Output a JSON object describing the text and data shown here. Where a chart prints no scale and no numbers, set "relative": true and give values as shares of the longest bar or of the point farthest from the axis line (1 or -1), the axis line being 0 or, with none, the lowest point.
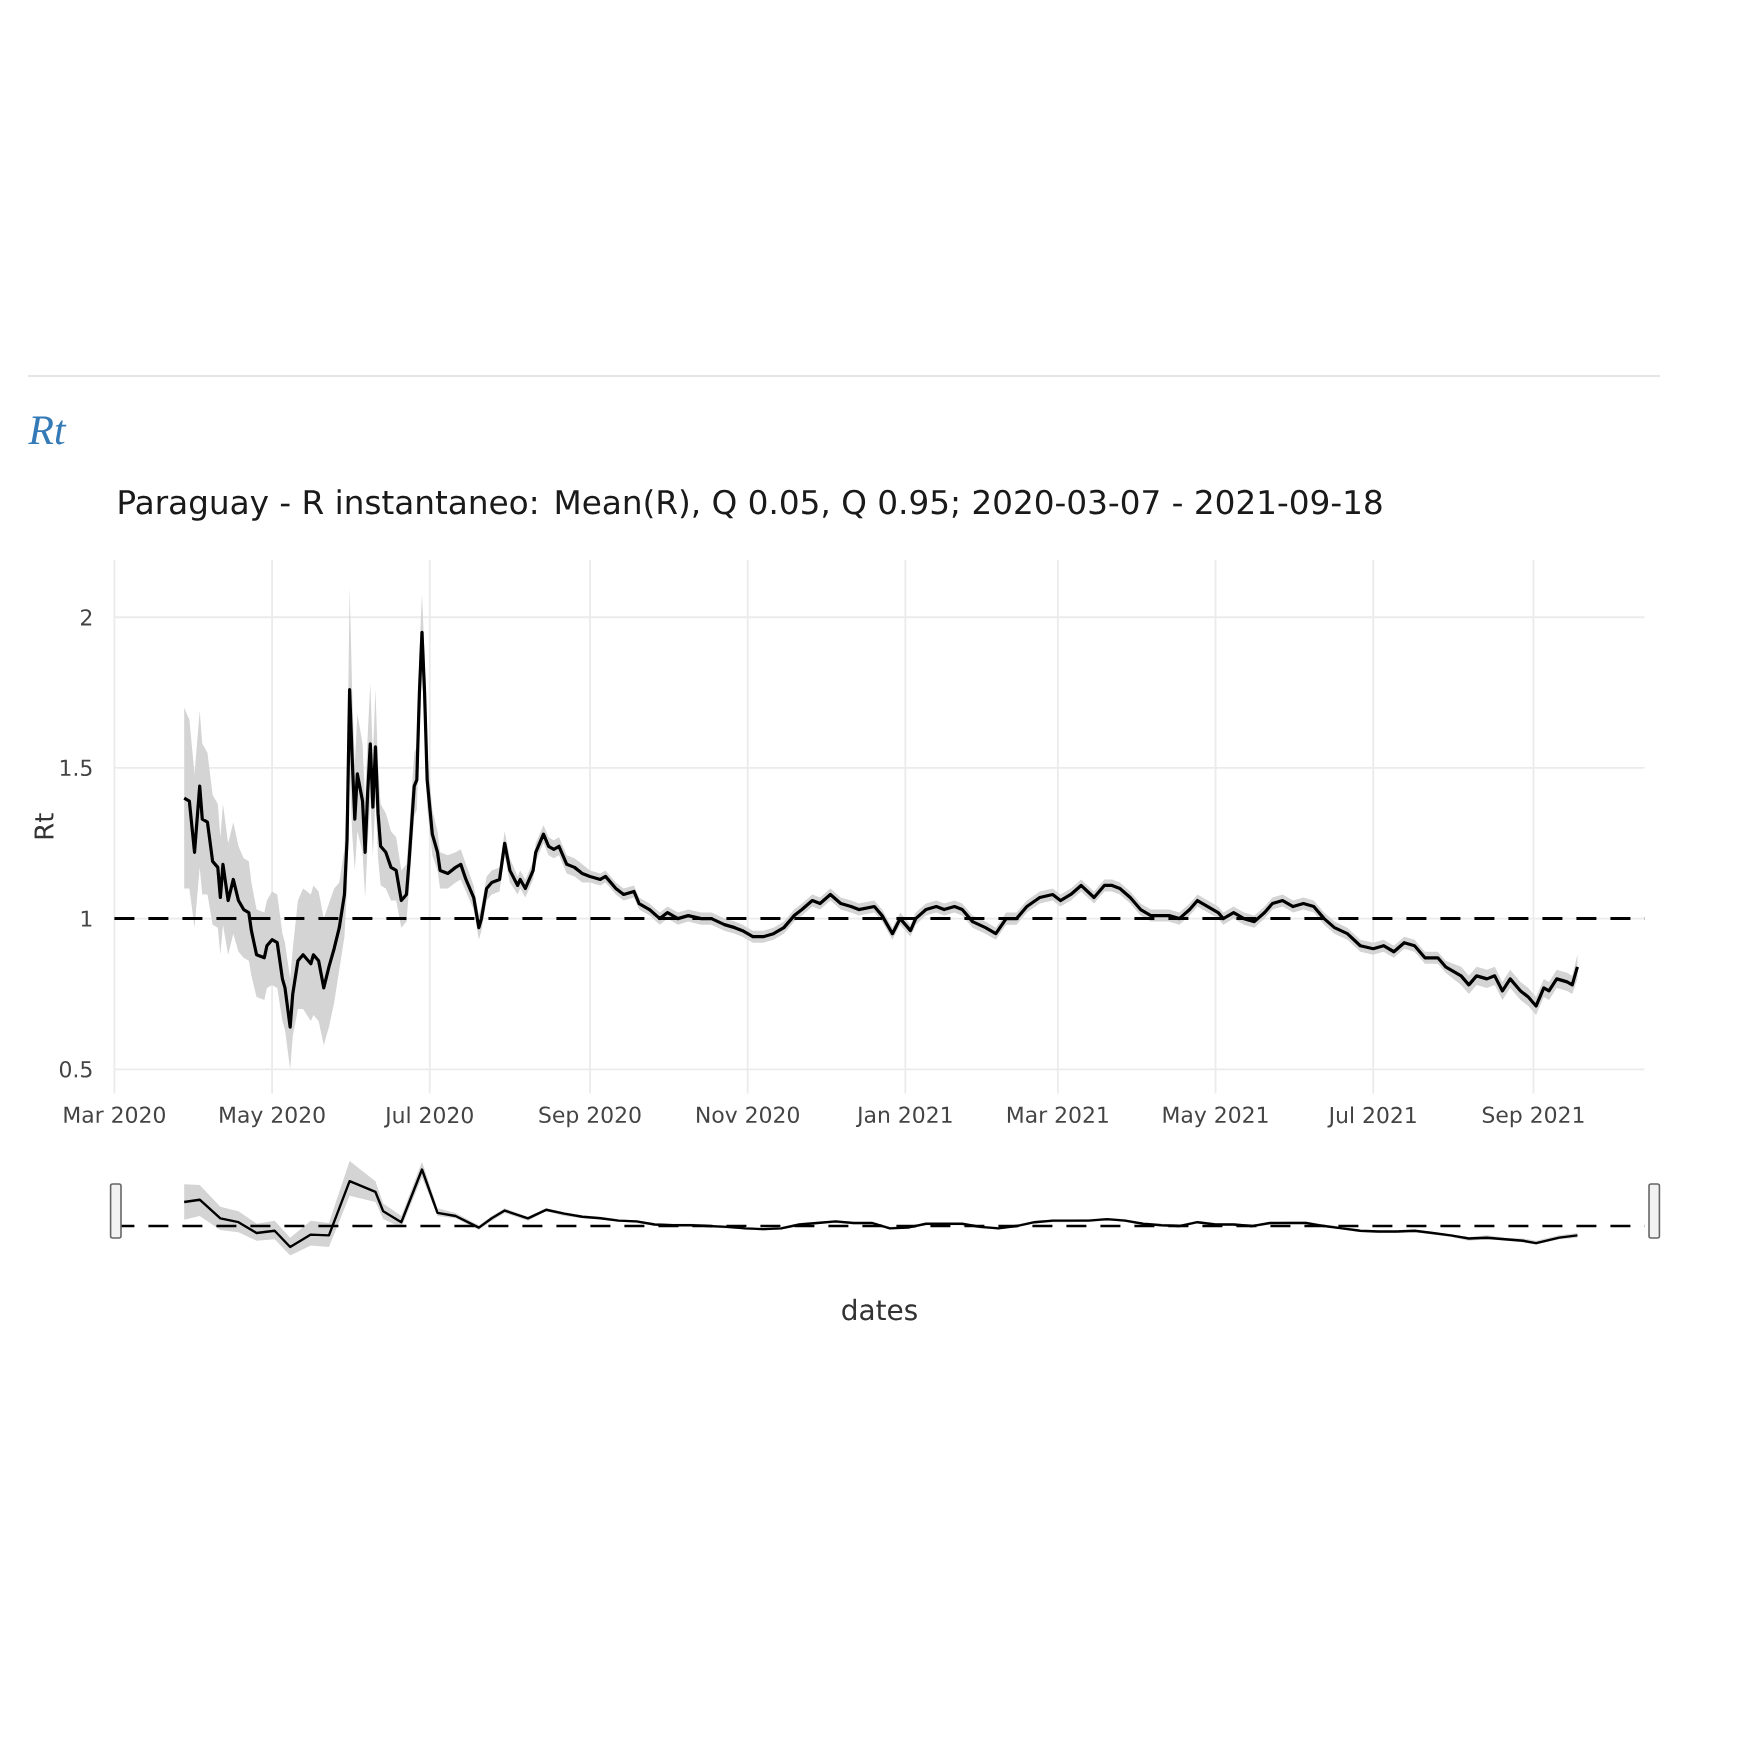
{
  "chart_data": [
    {
      "type": "line",
      "title": "Rt",
      "subtitle": "Paraguay - R instantaneo: Mean(R), Q 0.05, Q 0.95;  2020-03-07 - 2021-09-18",
      "ylabel": "Rt",
      "x": [
        "2020-03-28",
        "2020-03-30",
        "2020-04-01",
        "2020-04-03",
        "2020-04-04",
        "2020-04-06",
        "2020-04-08",
        "2020-04-10",
        "2020-04-11",
        "2020-04-12",
        "2020-04-14",
        "2020-04-16",
        "2020-04-18",
        "2020-04-20",
        "2020-04-22",
        "2020-04-23",
        "2020-04-25",
        "2020-04-28",
        "2020-04-29",
        "2020-05-01",
        "2020-05-03",
        "2020-05-05",
        "2020-05-06",
        "2020-05-08",
        "2020-05-09",
        "2020-05-11",
        "2020-05-13",
        "2020-05-16",
        "2020-05-17",
        "2020-05-19",
        "2020-05-21",
        "2020-05-23",
        "2020-05-25",
        "2020-05-27",
        "2020-05-29",
        "2020-05-30",
        "2020-05-31",
        "2020-06-01",
        "2020-06-02",
        "2020-06-03",
        "2020-06-05",
        "2020-06-06",
        "2020-06-07",
        "2020-06-08",
        "2020-06-09",
        "2020-06-10",
        "2020-06-11",
        "2020-06-12",
        "2020-06-14",
        "2020-06-16",
        "2020-06-18",
        "2020-06-20",
        "2020-06-22",
        "2020-06-23",
        "2020-06-25",
        "2020-06-26",
        "2020-06-27",
        "2020-06-28",
        "2020-06-29",
        "2020-06-30",
        "2020-07-02",
        "2020-07-04",
        "2020-07-05",
        "2020-07-08",
        "2020-07-11",
        "2020-07-13",
        "2020-07-15",
        "2020-07-18",
        "2020-07-20",
        "2020-07-21",
        "2020-07-23",
        "2020-07-25",
        "2020-07-28",
        "2020-07-30",
        "2020-08-01",
        "2020-08-04",
        "2020-08-05",
        "2020-08-07",
        "2020-08-10",
        "2020-08-11",
        "2020-08-14",
        "2020-08-16",
        "2020-08-18",
        "2020-08-20",
        "2020-08-23",
        "2020-08-26",
        "2020-08-29",
        "2020-09-01",
        "2020-09-05",
        "2020-09-07",
        "2020-09-11",
        "2020-09-14",
        "2020-09-18",
        "2020-09-20",
        "2020-09-24",
        "2020-09-28",
        "2020-10-01",
        "2020-10-05",
        "2020-10-09",
        "2020-10-14",
        "2020-10-18",
        "2020-10-23",
        "2020-10-27",
        "2020-10-30",
        "2020-11-03",
        "2020-11-07",
        "2020-11-11",
        "2020-11-15",
        "2020-11-19",
        "2020-11-22",
        "2020-11-26",
        "2020-11-29",
        "2020-12-03",
        "2020-12-07",
        "2020-12-11",
        "2020-12-14",
        "2020-12-20",
        "2020-12-23",
        "2020-12-27",
        "2020-12-30",
        "2021-01-03",
        "2021-01-05",
        "2021-01-09",
        "2021-01-13",
        "2021-01-16",
        "2021-01-20",
        "2021-01-23",
        "2021-01-27",
        "2021-02-01",
        "2021-02-05",
        "2021-02-09",
        "2021-02-13",
        "2021-02-17",
        "2021-02-22",
        "2021-02-27",
        "2021-03-02",
        "2021-03-06",
        "2021-03-10",
        "2021-03-15",
        "2021-03-19",
        "2021-03-22",
        "2021-03-25",
        "2021-03-29",
        "2021-04-02",
        "2021-04-06",
        "2021-04-10",
        "2021-04-13",
        "2021-04-17",
        "2021-04-21",
        "2021-04-24",
        "2021-04-28",
        "2021-05-02",
        "2021-05-04",
        "2021-05-08",
        "2021-05-12",
        "2021-05-16",
        "2021-05-20",
        "2021-05-23",
        "2021-05-27",
        "2021-05-31",
        "2021-06-04",
        "2021-06-08",
        "2021-06-12",
        "2021-06-16",
        "2021-06-21",
        "2021-06-26",
        "2021-07-01",
        "2021-07-05",
        "2021-07-09",
        "2021-07-13",
        "2021-07-17",
        "2021-07-21",
        "2021-07-26",
        "2021-07-29",
        "2021-08-04",
        "2021-08-07",
        "2021-08-10",
        "2021-08-14",
        "2021-08-17",
        "2021-08-20",
        "2021-08-23",
        "2021-08-27",
        "2021-08-30",
        "2021-09-02",
        "2021-09-05",
        "2021-09-07",
        "2021-09-10",
        "2021-09-14",
        "2021-09-16",
        "2021-09-18"
      ],
      "series": [
        {
          "color": "#000000",
          "values": [
            1.4,
            1.39,
            1.22,
            1.44,
            1.33,
            1.32,
            1.19,
            1.17,
            1.07,
            1.18,
            1.06,
            1.13,
            1.06,
            1.03,
            1.02,
            0.96,
            0.88,
            0.87,
            0.91,
            0.93,
            0.92,
            0.8,
            0.77,
            0.64,
            0.75,
            0.86,
            0.88,
            0.85,
            0.88,
            0.86,
            0.77,
            0.84,
            0.9,
            0.97,
            1.08,
            1.26,
            1.76,
            1.53,
            1.33,
            1.48,
            1.39,
            1.22,
            1.42,
            1.58,
            1.37,
            1.57,
            1.35,
            1.24,
            1.22,
            1.17,
            1.16,
            1.06,
            1.08,
            1.19,
            1.44,
            1.46,
            1.75,
            1.95,
            1.75,
            1.46,
            1.28,
            1.22,
            1.16,
            1.15,
            1.17,
            1.18,
            1.13,
            1.07,
            0.97,
            1.0,
            1.1,
            1.12,
            1.13,
            1.25,
            1.16,
            1.11,
            1.13,
            1.1,
            1.16,
            1.22,
            1.28,
            1.24,
            1.23,
            1.24,
            1.18,
            1.17,
            1.15,
            1.14,
            1.13,
            1.14,
            1.1,
            1.08,
            1.09,
            1.05,
            1.03,
            1.0,
            1.02,
            1.0,
            1.01,
            1.0,
            1.0,
            0.98,
            0.97,
            0.96,
            0.94,
            0.94,
            0.95,
            0.97,
            1.01,
            1.03,
            1.06,
            1.05,
            1.08,
            1.05,
            1.04,
            1.03,
            1.04,
            1.01,
            0.95,
            1.0,
            0.96,
            1.0,
            1.03,
            1.04,
            1.03,
            1.04,
            1.03,
            0.99,
            0.97,
            0.95,
            1.0,
            1.0,
            1.04,
            1.07,
            1.08,
            1.06,
            1.08,
            1.11,
            1.07,
            1.11,
            1.11,
            1.1,
            1.07,
            1.03,
            1.01,
            1.01,
            1.01,
            1.0,
            1.03,
            1.06,
            1.04,
            1.02,
            1.0,
            1.02,
            1.0,
            0.99,
            1.02,
            1.05,
            1.06,
            1.04,
            1.05,
            1.04,
            1.0,
            0.97,
            0.95,
            0.91,
            0.9,
            0.91,
            0.89,
            0.92,
            0.91,
            0.87,
            0.87,
            0.84,
            0.81,
            0.78,
            0.81,
            0.8,
            0.81,
            0.76,
            0.8,
            0.76,
            0.74,
            0.71,
            0.77,
            0.76,
            0.8,
            0.79,
            0.78,
            0.84
          ],
          "lower": [
            1.1,
            1.1,
            0.97,
            1.17,
            1.08,
            1.08,
            0.98,
            0.97,
            0.88,
            0.98,
            0.88,
            0.95,
            0.89,
            0.87,
            0.86,
            0.81,
            0.74,
            0.73,
            0.77,
            0.78,
            0.77,
            0.66,
            0.63,
            0.5,
            0.61,
            0.7,
            0.7,
            0.66,
            0.68,
            0.66,
            0.58,
            0.64,
            0.72,
            0.83,
            0.94,
            1.1,
            1.5,
            1.28,
            1.16,
            1.29,
            1.22,
            1.07,
            1.25,
            1.4,
            1.21,
            1.4,
            1.2,
            1.11,
            1.1,
            1.06,
            1.06,
            0.97,
            0.99,
            1.1,
            1.34,
            1.36,
            1.63,
            1.82,
            1.64,
            1.37,
            1.21,
            1.16,
            1.1,
            1.1,
            1.12,
            1.13,
            1.09,
            1.03,
            0.93,
            0.96,
            1.06,
            1.08,
            1.09,
            1.21,
            1.12,
            1.08,
            1.1,
            1.07,
            1.13,
            1.19,
            1.25,
            1.21,
            1.2,
            1.21,
            1.15,
            1.14,
            1.12,
            1.12,
            1.11,
            1.12,
            1.08,
            1.06,
            1.07,
            1.03,
            1.01,
            0.98,
            1.0,
            0.98,
            0.99,
            0.98,
            0.98,
            0.96,
            0.95,
            0.94,
            0.92,
            0.92,
            0.93,
            0.95,
            0.99,
            1.01,
            1.04,
            1.03,
            1.06,
            1.03,
            1.02,
            1.01,
            1.02,
            0.99,
            0.93,
            0.98,
            0.94,
            0.98,
            1.01,
            1.02,
            1.01,
            1.02,
            1.01,
            0.97,
            0.95,
            0.93,
            0.98,
            0.98,
            1.02,
            1.05,
            1.06,
            1.04,
            1.06,
            1.09,
            1.05,
            1.09,
            1.09,
            1.08,
            1.05,
            1.01,
            0.99,
            0.99,
            0.99,
            0.98,
            1.01,
            1.04,
            1.02,
            1.0,
            0.98,
            1.0,
            0.98,
            0.97,
            1.0,
            1.03,
            1.04,
            1.02,
            1.03,
            1.02,
            0.98,
            0.95,
            0.93,
            0.89,
            0.88,
            0.89,
            0.87,
            0.9,
            0.89,
            0.85,
            0.85,
            0.82,
            0.78,
            0.75,
            0.78,
            0.77,
            0.78,
            0.73,
            0.77,
            0.73,
            0.71,
            0.68,
            0.74,
            0.73,
            0.77,
            0.76,
            0.75,
            0.8
          ],
          "upper": [
            1.7,
            1.66,
            1.48,
            1.69,
            1.58,
            1.55,
            1.41,
            1.38,
            1.27,
            1.38,
            1.25,
            1.32,
            1.24,
            1.2,
            1.19,
            1.12,
            1.03,
            1.02,
            1.06,
            1.09,
            1.08,
            0.95,
            0.92,
            0.8,
            0.9,
            1.06,
            1.1,
            1.08,
            1.11,
            1.09,
            1.0,
            1.05,
            1.1,
            1.12,
            1.23,
            1.43,
            2.1,
            1.75,
            1.51,
            1.68,
            1.58,
            1.39,
            1.61,
            1.78,
            1.54,
            1.76,
            1.51,
            1.38,
            1.35,
            1.29,
            1.27,
            1.16,
            1.18,
            1.29,
            1.55,
            1.57,
            1.88,
            2.08,
            1.87,
            1.56,
            1.36,
            1.29,
            1.22,
            1.21,
            1.22,
            1.23,
            1.18,
            1.11,
            1.01,
            1.04,
            1.14,
            1.16,
            1.17,
            1.29,
            1.2,
            1.14,
            1.16,
            1.13,
            1.19,
            1.25,
            1.31,
            1.27,
            1.26,
            1.27,
            1.21,
            1.2,
            1.18,
            1.16,
            1.15,
            1.16,
            1.12,
            1.1,
            1.11,
            1.07,
            1.05,
            1.02,
            1.04,
            1.02,
            1.03,
            1.02,
            1.02,
            1.0,
            0.99,
            0.98,
            0.96,
            0.96,
            0.97,
            0.99,
            1.03,
            1.05,
            1.08,
            1.07,
            1.1,
            1.07,
            1.06,
            1.05,
            1.06,
            1.03,
            0.97,
            1.02,
            0.98,
            1.02,
            1.05,
            1.06,
            1.05,
            1.06,
            1.05,
            1.01,
            0.99,
            0.97,
            1.02,
            1.02,
            1.06,
            1.09,
            1.1,
            1.08,
            1.1,
            1.13,
            1.09,
            1.13,
            1.13,
            1.12,
            1.09,
            1.05,
            1.03,
            1.03,
            1.03,
            1.02,
            1.05,
            1.08,
            1.06,
            1.04,
            1.02,
            1.04,
            1.02,
            1.01,
            1.04,
            1.07,
            1.08,
            1.06,
            1.07,
            1.06,
            1.02,
            0.99,
            0.97,
            0.93,
            0.92,
            0.93,
            0.91,
            0.94,
            0.93,
            0.89,
            0.89,
            0.86,
            0.84,
            0.81,
            0.84,
            0.83,
            0.84,
            0.79,
            0.83,
            0.79,
            0.77,
            0.74,
            0.8,
            0.79,
            0.83,
            0.82,
            0.81,
            0.88
          ]
        }
      ],
      "xlim": [
        "2020-03-01",
        "2021-10-14"
      ],
      "xticks": [
        {
          "value": "2020-03-01",
          "label": "Mar 2020"
        },
        {
          "value": "2020-05-01",
          "label": "May 2020"
        },
        {
          "value": "2020-07-01",
          "label": "Jul 2020"
        },
        {
          "value": "2020-09-01",
          "label": "Sep 2020"
        },
        {
          "value": "2020-11-01",
          "label": "Nov 2020"
        },
        {
          "value": "2021-01-01",
          "label": "Jan 2021"
        },
        {
          "value": "2021-03-01",
          "label": "Mar 2021"
        },
        {
          "value": "2021-05-01",
          "label": "May 2021"
        },
        {
          "value": "2021-07-01",
          "label": "Jul 2021"
        },
        {
          "value": "2021-09-01",
          "label": "Sep 2021"
        }
      ],
      "ylim": [
        0.42,
        2.19
      ],
      "yticks": [
        0.5,
        1,
        1.5,
        2
      ],
      "grid": true,
      "ref_lines": [
        {
          "axis": "y",
          "value": 1,
          "color": "#000000",
          "line_style": "dashed"
        }
      ]
    },
    {
      "type": "line",
      "relative": true,
      "xlabel": "dates",
      "x": [
        "2020-03-28",
        "2020-04-03",
        "2020-04-11",
        "2020-04-18",
        "2020-04-25",
        "2020-05-02",
        "2020-05-08",
        "2020-05-16",
        "2020-05-23",
        "2020-05-31",
        "2020-06-10",
        "2020-06-13",
        "2020-06-20",
        "2020-06-28",
        "2020-07-04",
        "2020-07-11",
        "2020-07-20",
        "2020-07-25",
        "2020-07-30",
        "2020-08-08",
        "2020-08-15",
        "2020-08-22",
        "2020-08-29",
        "2020-09-05",
        "2020-09-12",
        "2020-09-19",
        "2020-09-26",
        "2020-10-03",
        "2020-10-10",
        "2020-10-17",
        "2020-10-24",
        "2020-10-31",
        "2020-11-07",
        "2020-11-14",
        "2020-11-21",
        "2020-11-28",
        "2020-12-05",
        "2020-12-12",
        "2020-12-19",
        "2020-12-26",
        "2021-01-02",
        "2021-01-09",
        "2021-01-16",
        "2021-01-23",
        "2021-01-30",
        "2021-02-06",
        "2021-02-13",
        "2021-02-20",
        "2021-02-27",
        "2021-03-06",
        "2021-03-13",
        "2021-03-20",
        "2021-03-27",
        "2021-04-03",
        "2021-04-10",
        "2021-04-17",
        "2021-04-24",
        "2021-05-01",
        "2021-05-08",
        "2021-05-15",
        "2021-05-22",
        "2021-05-29",
        "2021-06-05",
        "2021-06-12",
        "2021-06-19",
        "2021-06-26",
        "2021-07-03",
        "2021-07-10",
        "2021-07-17",
        "2021-07-24",
        "2021-07-31",
        "2021-08-07",
        "2021-08-14",
        "2021-08-21",
        "2021-08-28",
        "2021-09-02",
        "2021-09-11",
        "2021-09-18"
      ],
      "xlim": [
        "2020-03-01",
        "2021-10-14"
      ],
      "series": [
        {
          "color": "#000000",
          "values": [
            0.58,
            0.61,
            0.37,
            0.32,
            0.18,
            0.21,
            0.0,
            0.16,
            0.15,
            0.85,
            0.71,
            0.46,
            0.32,
            1.0,
            0.44,
            0.4,
            0.25,
            0.37,
            0.47,
            0.37,
            0.48,
            0.43,
            0.39,
            0.37,
            0.34,
            0.33,
            0.29,
            0.28,
            0.28,
            0.27,
            0.26,
            0.24,
            0.23,
            0.24,
            0.29,
            0.31,
            0.33,
            0.31,
            0.31,
            0.24,
            0.25,
            0.3,
            0.3,
            0.3,
            0.26,
            0.24,
            0.27,
            0.32,
            0.34,
            0.34,
            0.34,
            0.36,
            0.34,
            0.3,
            0.28,
            0.27,
            0.32,
            0.29,
            0.29,
            0.27,
            0.31,
            0.31,
            0.31,
            0.27,
            0.24,
            0.21,
            0.2,
            0.2,
            0.21,
            0.18,
            0.15,
            0.11,
            0.12,
            0.1,
            0.08,
            0.05,
            0.12,
            0.15
          ],
          "lower": [
            0.35,
            0.4,
            0.22,
            0.19,
            0.08,
            0.1,
            -0.11,
            0.02,
            0.0,
            0.66,
            0.58,
            0.36,
            0.25,
            0.9,
            0.4,
            0.37,
            0.22,
            0.34,
            0.44,
            0.34,
            0.46,
            0.4,
            0.37,
            0.36,
            0.33,
            0.31,
            0.27,
            0.27,
            0.27,
            0.26,
            0.24,
            0.23,
            0.21,
            0.23,
            0.27,
            0.3,
            0.31,
            0.29,
            0.29,
            0.23,
            0.24,
            0.28,
            0.28,
            0.28,
            0.24,
            0.23,
            0.26,
            0.31,
            0.32,
            0.32,
            0.33,
            0.34,
            0.33,
            0.28,
            0.27,
            0.26,
            0.31,
            0.27,
            0.27,
            0.25,
            0.29,
            0.3,
            0.3,
            0.26,
            0.23,
            0.19,
            0.18,
            0.18,
            0.19,
            0.16,
            0.13,
            0.08,
            0.1,
            0.08,
            0.06,
            0.03,
            0.1,
            0.12
          ],
          "upper": [
            0.81,
            0.8,
            0.52,
            0.46,
            0.3,
            0.34,
            0.12,
            0.34,
            0.31,
            1.11,
            0.85,
            0.56,
            0.4,
            1.1,
            0.5,
            0.44,
            0.28,
            0.4,
            0.5,
            0.39,
            0.5,
            0.45,
            0.41,
            0.39,
            0.36,
            0.34,
            0.31,
            0.3,
            0.3,
            0.29,
            0.27,
            0.26,
            0.24,
            0.26,
            0.31,
            0.33,
            0.34,
            0.32,
            0.32,
            0.26,
            0.27,
            0.31,
            0.31,
            0.31,
            0.27,
            0.26,
            0.29,
            0.34,
            0.35,
            0.35,
            0.36,
            0.37,
            0.36,
            0.31,
            0.3,
            0.29,
            0.34,
            0.31,
            0.31,
            0.28,
            0.32,
            0.33,
            0.33,
            0.29,
            0.26,
            0.22,
            0.21,
            0.21,
            0.22,
            0.19,
            0.16,
            0.13,
            0.15,
            0.12,
            0.11,
            0.08,
            0.15,
            0.18
          ]
        }
      ],
      "ref_lines": [
        {
          "axis": "y",
          "value": 0.27,
          "color": "#000000",
          "line_style": "dashed"
        }
      ]
    }
  ]
}
